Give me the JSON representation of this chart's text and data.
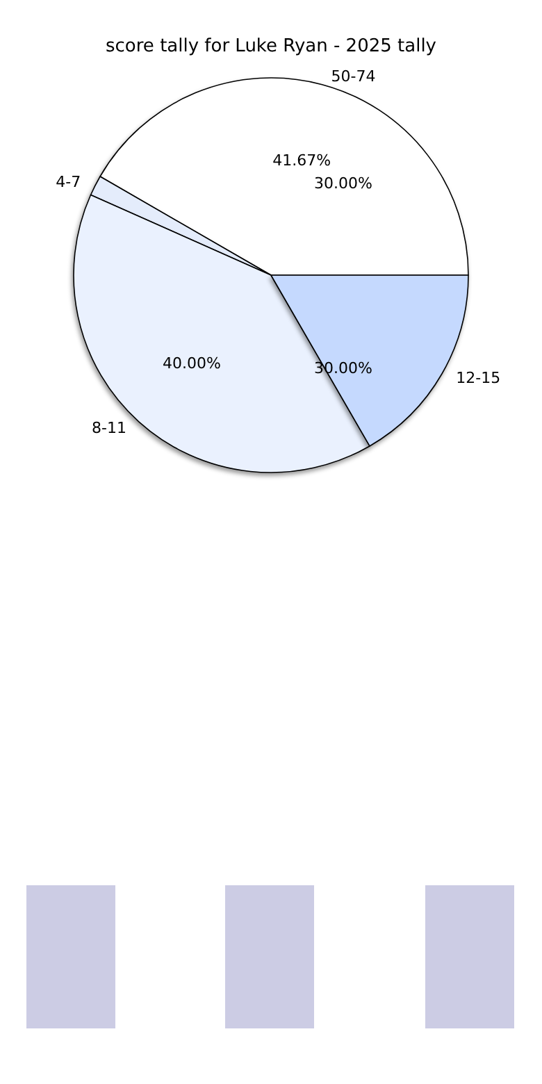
{
  "chart_data": {
    "type": "pie",
    "title": "score tally for Luke Ryan - 2025 tally",
    "categories": [
      "50-74",
      "4-7",
      "8-11",
      "12-15"
    ],
    "values": [
      41.67,
      1.67,
      40.0,
      16.67
    ],
    "colors": [
      "#ffffff",
      "#e4ecfb",
      "#eaf1fe",
      "#c5d9fe"
    ],
    "value_labels": [
      "41.67%",
      null,
      "40.00%",
      null
    ],
    "annotations": [
      "30.00%",
      "30.00%"
    ],
    "legend": false
  }
}
